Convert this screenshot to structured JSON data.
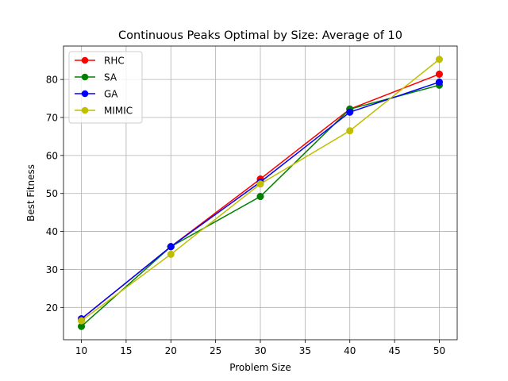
{
  "chart_data": {
    "type": "line",
    "title": "Continuous Peaks Optimal by Size: Average of 10",
    "xlabel": "Problem Size",
    "ylabel": "Best Fitness",
    "x": [
      10,
      20,
      30,
      40,
      50
    ],
    "xticks": [
      10,
      15,
      20,
      25,
      30,
      35,
      40,
      45,
      50
    ],
    "yticks": [
      20,
      30,
      40,
      50,
      60,
      70,
      80
    ],
    "xlim": [
      8,
      52
    ],
    "ylim": [
      11.5,
      88.8
    ],
    "grid": true,
    "legend_position": "top-left",
    "series": [
      {
        "name": "RHC",
        "color": "#ff0000",
        "values": [
          17.0,
          36.0,
          53.8,
          72.2,
          81.4
        ]
      },
      {
        "name": "SA",
        "color": "#008000",
        "values": [
          15.0,
          36.0,
          49.2,
          72.2,
          78.5
        ]
      },
      {
        "name": "GA",
        "color": "#0000ff",
        "values": [
          17.0,
          36.0,
          53.0,
          71.4,
          79.3
        ]
      },
      {
        "name": "MIMIC",
        "color": "#bfbf00",
        "values": [
          16.5,
          34.0,
          52.5,
          66.5,
          85.3
        ]
      }
    ]
  }
}
